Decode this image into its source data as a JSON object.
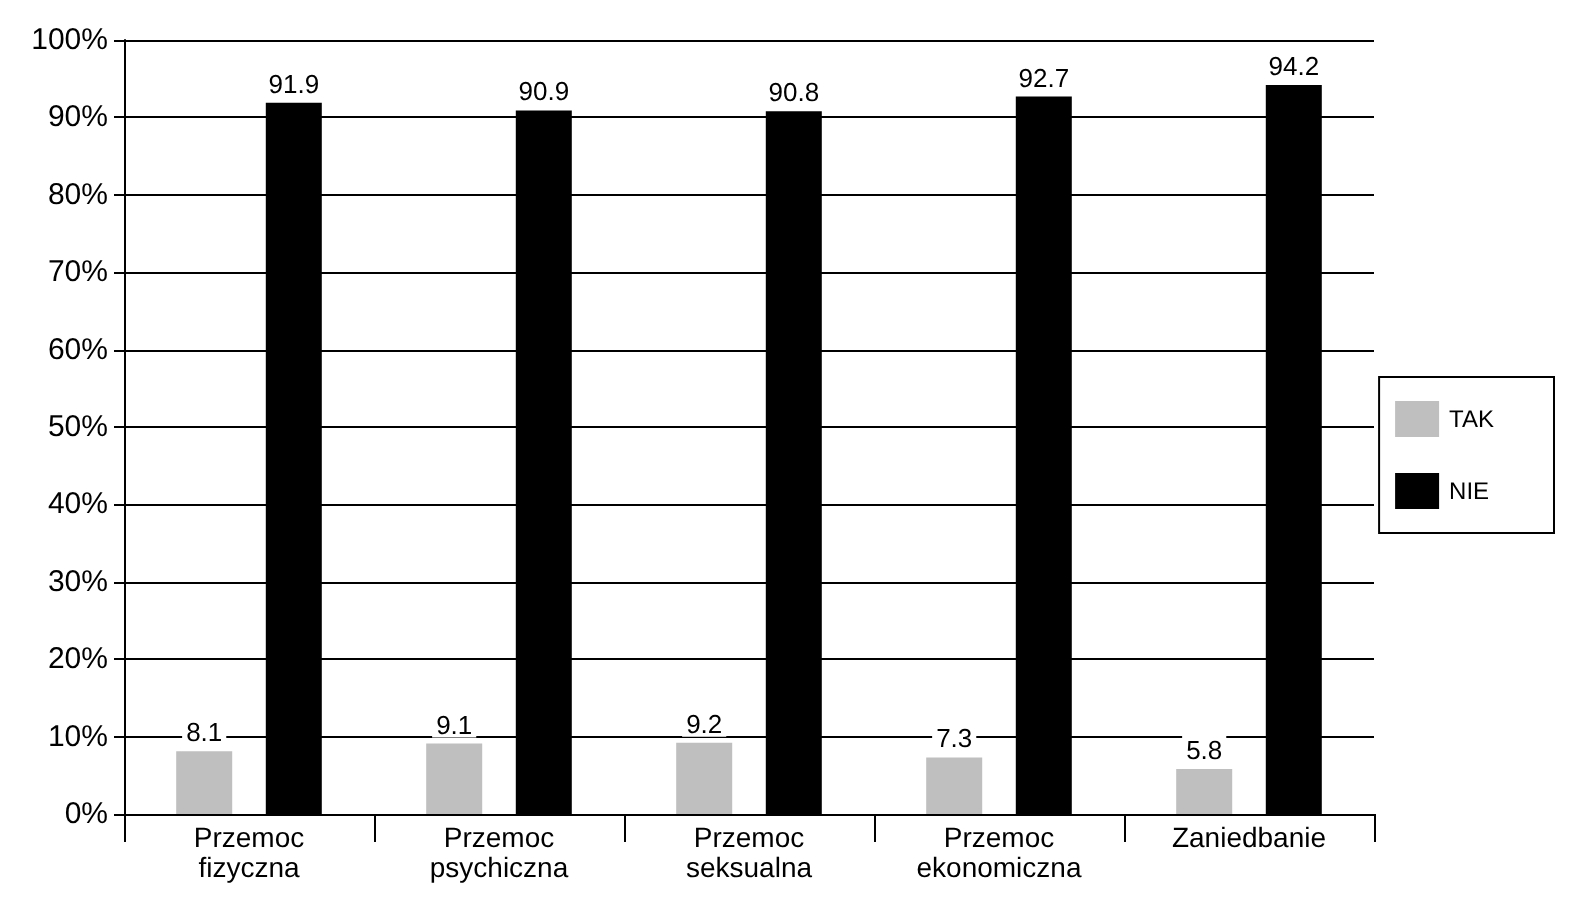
{
  "chart_data": {
    "type": "bar",
    "categories": [
      "Przemoc\nfizyczna",
      "Przemoc\npsychiczna",
      "Przemoc\nseksualna",
      "Przemoc\nekonomiczna",
      "Zaniedbanie"
    ],
    "series": [
      {
        "name": "TAK",
        "color": "#bfbfbf",
        "values": [
          8.1,
          9.1,
          9.2,
          7.3,
          5.8
        ]
      },
      {
        "name": "NIE",
        "color": "#000000",
        "values": [
          91.9,
          90.9,
          90.8,
          92.7,
          94.2
        ]
      }
    ],
    "ylim": [
      0,
      100
    ],
    "yticks": [
      {
        "value": 0,
        "label": "0%"
      },
      {
        "value": 10,
        "label": "10%"
      },
      {
        "value": 20,
        "label": "20%"
      },
      {
        "value": 30,
        "label": "30%"
      },
      {
        "value": 40,
        "label": "40%"
      },
      {
        "value": 50,
        "label": "50%"
      },
      {
        "value": 60,
        "label": "60%"
      },
      {
        "value": 70,
        "label": "70%"
      },
      {
        "value": 80,
        "label": "80%"
      },
      {
        "value": 90,
        "label": "90%"
      },
      {
        "value": 100,
        "label": "100%"
      }
    ],
    "grid": "y",
    "legend": "right",
    "data_labels": true
  }
}
